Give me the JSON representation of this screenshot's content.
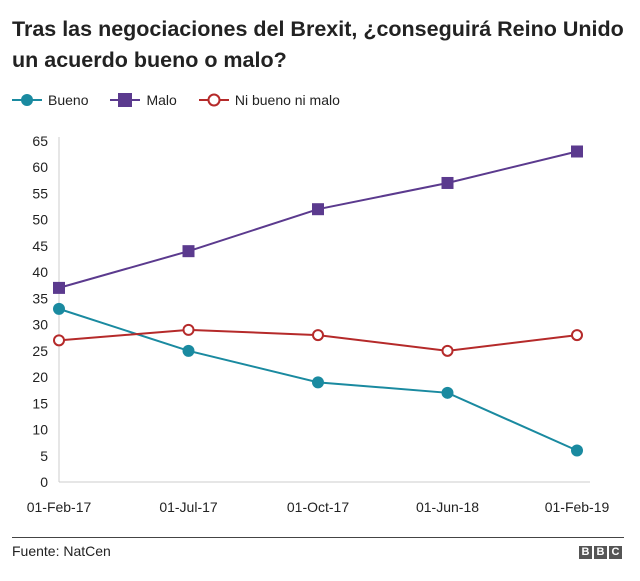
{
  "chart_data": {
    "type": "line",
    "title": "Tras las negociaciones del Brexit, ¿conseguirá Reino Unido un acuerdo bueno o malo?",
    "categories": [
      "01-Feb-17",
      "01-Jul-17",
      "01-Oct-17",
      "01-Jun-18",
      "01-Feb-19"
    ],
    "ylim": [
      0,
      65
    ],
    "yticks": [
      0,
      5,
      10,
      15,
      20,
      25,
      30,
      35,
      40,
      45,
      50,
      55,
      60,
      65
    ],
    "grid": false,
    "legend": "top-left",
    "series": [
      {
        "name": "Bueno",
        "color": "#1a8aa0",
        "marker": "filled-circle",
        "values": [
          33,
          25,
          19,
          17,
          6
        ]
      },
      {
        "name": "Malo",
        "color": "#5b3a8e",
        "marker": "filled-square",
        "values": [
          37,
          44,
          52,
          57,
          63
        ]
      },
      {
        "name": "Ni bueno ni malo",
        "color": "#b52a2a",
        "marker": "hollow-circle",
        "values": [
          27,
          29,
          28,
          25,
          28
        ]
      }
    ]
  },
  "footer": {
    "source": "Fuente: NatCen",
    "logo": "BBC"
  }
}
